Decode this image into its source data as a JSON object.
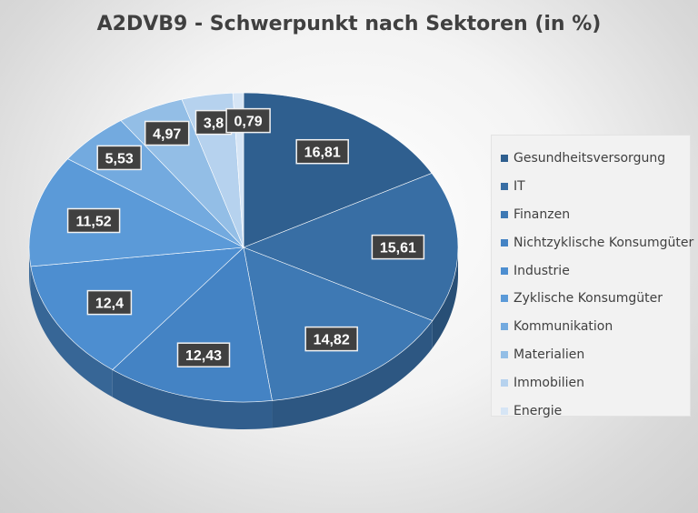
{
  "chart_data": {
    "type": "pie",
    "title": "A2DVB9 - Schwerpunkt nach Sektoren (in %)",
    "categories": [
      "Gesundheitsversorgung",
      "IT",
      "Finanzen",
      "Nichtzyklische Konsumgüter",
      "Industrie",
      "Zyklische Konsumgüter",
      "Kommunikation",
      "Materialien",
      "Immobilien",
      "Energie"
    ],
    "values": [
      16.81,
      15.61,
      14.82,
      12.43,
      12.4,
      11.52,
      5.53,
      4.97,
      3.8,
      0.79
    ],
    "value_labels": [
      "16,81",
      "15,61",
      "14,82",
      "12,43",
      "12,4",
      "11,52",
      "5,53",
      "4,97",
      "3,8",
      "0,79"
    ],
    "colors": [
      "#2f5f8f",
      "#386ea4",
      "#3e79b4",
      "#4483c4",
      "#4d8ed0",
      "#5b9ad8",
      "#73aadf",
      "#93bee6",
      "#b6d2ee",
      "#d6e5f5"
    ],
    "legend_position": "right",
    "style": "3d-pie"
  }
}
